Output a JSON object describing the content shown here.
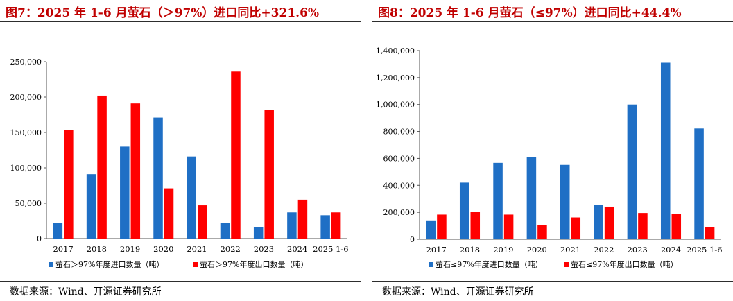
{
  "chart_data": [
    {
      "type": "bar",
      "title": "图7：2025 年 1-6 月萤石（＞97%）进口同比+321.6%",
      "categories": [
        "2017",
        "2018",
        "2019",
        "2020",
        "2021",
        "2022",
        "2023",
        "2024",
        "2025 1-6"
      ],
      "series": [
        {
          "name": "萤石＞97%年度进口数量（吨）",
          "color": "#1f6fc5",
          "values": [
            22000,
            91000,
            130000,
            171000,
            116000,
            22000,
            16000,
            37000,
            33000
          ]
        },
        {
          "name": "萤石＞97%年度出口数量（吨）",
          "color": "#ff0000",
          "values": [
            153000,
            202000,
            191000,
            71000,
            47000,
            236000,
            182000,
            55000,
            37000
          ]
        }
      ],
      "yticks": [
        "0",
        "50,000",
        "100,000",
        "150,000",
        "200,000",
        "250,000"
      ],
      "ylim": [
        0,
        250000
      ],
      "grid": false,
      "legend": "bottom",
      "source": "数据来源：Wind、开源证券研究所"
    },
    {
      "type": "bar",
      "title": "图8：2025 年 1-6 月萤石（≤97%）进口同比+44.4%",
      "categories": [
        "2017",
        "2018",
        "2019",
        "2020",
        "2021",
        "2022",
        "2023",
        "2024",
        "2025 1-6"
      ],
      "series": [
        {
          "name": "萤石≤97%年度进口数量（吨）",
          "color": "#1f6fc5",
          "values": [
            140000,
            420000,
            567000,
            608000,
            552000,
            257000,
            1000000,
            1310000,
            822000
          ]
        },
        {
          "name": "萤石≤97%年度出口数量（吨）",
          "color": "#ff0000",
          "values": [
            183000,
            202000,
            183000,
            105000,
            162000,
            242000,
            195000,
            190000,
            88000
          ]
        }
      ],
      "yticks": [
        "0",
        "200,000",
        "400,000",
        "600,000",
        "800,000",
        "1,000,000",
        "1,200,000",
        "1,400,000"
      ],
      "ylim": [
        0,
        1400000
      ],
      "grid": false,
      "legend": "bottom",
      "source": "数据来源：Wind、开源证券研究所"
    }
  ]
}
